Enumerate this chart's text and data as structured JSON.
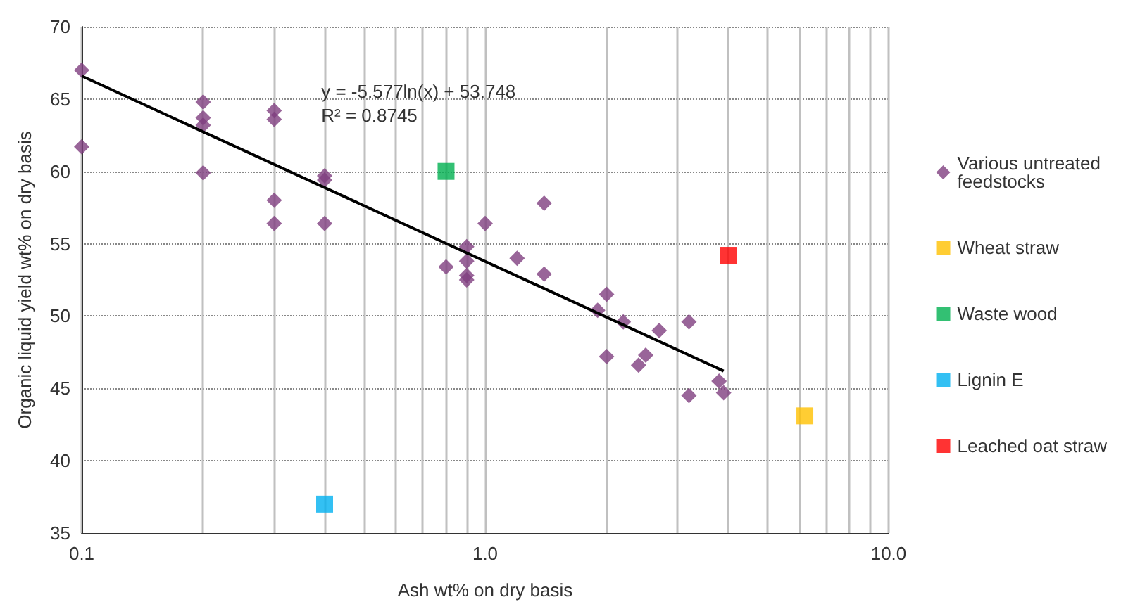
{
  "chart_data": {
    "type": "scatter",
    "xlabel": "Ash wt% on dry basis",
    "ylabel": "Organic liquid yield wt% on dry basis",
    "log": "x",
    "grid": true,
    "legend": "right",
    "xlim": [
      0.1,
      10
    ],
    "xticks": [
      {
        "value": 0.1,
        "label": "0.1"
      },
      {
        "value": 0.2,
        "label": null
      },
      {
        "value": 0.3,
        "label": null
      },
      {
        "value": 0.4,
        "label": null
      },
      {
        "value": 0.5,
        "label": null
      },
      {
        "value": 0.6,
        "label": null
      },
      {
        "value": 0.7,
        "label": null
      },
      {
        "value": 0.8,
        "label": null
      },
      {
        "value": 0.9,
        "label": null
      },
      {
        "value": 1,
        "label": "1.0"
      },
      {
        "value": 2,
        "label": null
      },
      {
        "value": 3,
        "label": null
      },
      {
        "value": 4,
        "label": null
      },
      {
        "value": 5,
        "label": null
      },
      {
        "value": 6,
        "label": null
      },
      {
        "value": 7,
        "label": null
      },
      {
        "value": 8,
        "label": null
      },
      {
        "value": 9,
        "label": null
      },
      {
        "value": 10,
        "label": "10.0"
      }
    ],
    "ylim": [
      35,
      70
    ],
    "yticks": [
      35,
      40,
      45,
      50,
      55,
      60,
      65,
      70
    ],
    "annotations": [
      "y = -5.577ln(x) + 53.748",
      "R² = 0.8745"
    ],
    "series": [
      {
        "name": "Various untreated feedstocks",
        "color": "#7f3f7f",
        "marker": "diamond",
        "x": [
          0.1,
          0.1,
          0.2,
          0.2,
          0.2,
          0.2,
          0.3,
          0.3,
          0.3,
          0.3,
          0.4,
          0.4,
          0.4,
          0.8,
          0.9,
          0.9,
          0.9,
          0.9,
          1.0,
          1.2,
          1.4,
          1.4,
          1.9,
          2.0,
          2.0,
          2.2,
          2.4,
          2.5,
          2.7,
          3.2,
          3.2,
          3.8,
          3.9
        ],
        "values": [
          67.0,
          61.7,
          64.8,
          63.7,
          63.2,
          59.9,
          64.2,
          63.6,
          58.0,
          56.4,
          59.7,
          59.4,
          56.4,
          53.4,
          54.8,
          53.8,
          52.8,
          52.5,
          56.4,
          54.0,
          57.8,
          52.9,
          50.4,
          51.5,
          47.2,
          49.6,
          46.6,
          47.3,
          49.0,
          49.6,
          44.5,
          45.5,
          44.7
        ]
      },
      {
        "name": "Wheat straw",
        "color": "#ffc000",
        "marker": "square",
        "x": [
          6.2
        ],
        "values": [
          43.1
        ]
      },
      {
        "name": "Waste wood",
        "color": "#00b050",
        "marker": "square",
        "x": [
          0.8
        ],
        "values": [
          60.0
        ]
      },
      {
        "name": "Lignin E",
        "color": "#00b0f0",
        "marker": "square",
        "x": [
          0.4
        ],
        "values": [
          37.0
        ]
      },
      {
        "name": "Leached oat straw",
        "color": "#ff0000",
        "marker": "square",
        "x": [
          4.0
        ],
        "values": [
          54.2
        ]
      },
      {
        "type": "line",
        "color": "#000000",
        "marker": "none",
        "x": [
          0.1,
          3.9
        ],
        "values": [
          66.6,
          46.2
        ]
      }
    ]
  }
}
